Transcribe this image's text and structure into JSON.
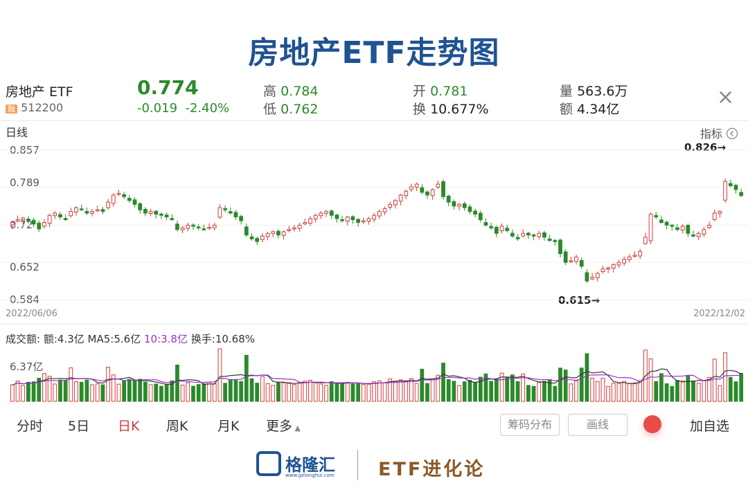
{
  "page_title": "房地产ETF走势图",
  "header": {
    "name": "房地产 ETF",
    "badge": "融",
    "code": "512200",
    "price": "0.774",
    "change": "-0.019",
    "change_pct": "-2.40%",
    "high_label": "高",
    "high": "0.784",
    "low_label": "低",
    "low": "0.762",
    "open_label": "开",
    "open": "0.781",
    "turnover_label": "换",
    "turnover": "10.677%",
    "vol_label": "量",
    "vol": "563.6万",
    "amount_label": "额",
    "amount": "4.34亿",
    "close_icon": "close-icon"
  },
  "chart": {
    "period_label": "日线",
    "indicator_label": "指标",
    "indicator_icon": "chevron-left-circle-icon",
    "y_ticks": [
      "0.857",
      "0.789",
      "0.72",
      "0.652",
      "0.584"
    ],
    "start_date": "2022/06/06",
    "end_date": "2022/12/02",
    "annot_high": "0.826→",
    "annot_low": "0.615→",
    "colors": {
      "up": "#d23b3b",
      "down": "#2a8a2a",
      "ma5": "#333333",
      "ma10": "#9b30c9"
    }
  },
  "volume": {
    "label": "成交额:",
    "amount_text": "额:4.3亿",
    "ma5_text": "MA5:5.6亿",
    "ma10_text": "10:3.8亿",
    "turnover_text": "换手:10.68%",
    "max_label": "6.37亿"
  },
  "tabs": [
    "分时",
    "5日",
    "日K",
    "周K",
    "月K",
    "更多"
  ],
  "active_tab": "日K",
  "buttons": {
    "chips": "筹码分布",
    "draw": "画线",
    "add": "加自选"
  },
  "footer": {
    "brand": "格隆汇",
    "brand_url": "www.gelonghui.com",
    "slogan": "ETF进化论"
  },
  "chart_data": {
    "type": "candlestick",
    "x": [
      "2022/06/06",
      "2022/12/02"
    ],
    "ylim": [
      0.584,
      0.857
    ],
    "closes": [
      0.725,
      0.73,
      0.733,
      0.728,
      0.722,
      0.713,
      0.725,
      0.738,
      0.742,
      0.735,
      0.73,
      0.745,
      0.752,
      0.748,
      0.742,
      0.745,
      0.748,
      0.745,
      0.762,
      0.775,
      0.778,
      0.772,
      0.765,
      0.758,
      0.748,
      0.742,
      0.745,
      0.74,
      0.738,
      0.735,
      0.73,
      0.712,
      0.715,
      0.72,
      0.718,
      0.715,
      0.712,
      0.716,
      0.72,
      0.752,
      0.748,
      0.742,
      0.735,
      0.728,
      0.702,
      0.695,
      0.69,
      0.7,
      0.705,
      0.708,
      0.702,
      0.708,
      0.712,
      0.715,
      0.72,
      0.725,
      0.732,
      0.738,
      0.742,
      0.745,
      0.738,
      0.732,
      0.728,
      0.735,
      0.73,
      0.725,
      0.728,
      0.732,
      0.738,
      0.745,
      0.75,
      0.758,
      0.765,
      0.775,
      0.782,
      0.79,
      0.795,
      0.78,
      0.775,
      0.785,
      0.795,
      0.772,
      0.762,
      0.755,
      0.758,
      0.752,
      0.745,
      0.74,
      0.73,
      0.72,
      0.715,
      0.705,
      0.718,
      0.71,
      0.7,
      0.695,
      0.705,
      0.702,
      0.7,
      0.705,
      0.698,
      0.692,
      0.69,
      0.668,
      0.652,
      0.655,
      0.662,
      0.645,
      0.618,
      0.625,
      0.632,
      0.64,
      0.642,
      0.648,
      0.652,
      0.658,
      0.662,
      0.665,
      0.672,
      0.698,
      0.74,
      0.735,
      0.725,
      0.72,
      0.718,
      0.712,
      0.718,
      0.705,
      0.7,
      0.705,
      0.712,
      0.72,
      0.742,
      0.745,
      0.8,
      0.792,
      0.785,
      0.774
    ]
  }
}
